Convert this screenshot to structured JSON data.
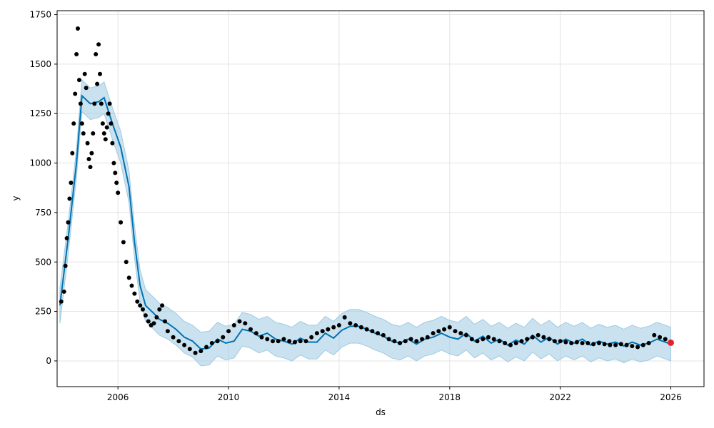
{
  "chart_data": {
    "type": "scatter",
    "xlabel": "ds",
    "ylabel": "y",
    "xlim": [
      2003.8,
      2027.2
    ],
    "ylim": [
      -130,
      1770
    ],
    "grid": true,
    "x_ticks": [
      2006,
      2010,
      2014,
      2018,
      2022,
      2026
    ],
    "x_tick_labels": [
      "2006",
      "2010",
      "2014",
      "2018",
      "2022",
      "2026"
    ],
    "y_ticks": [
      0,
      250,
      500,
      750,
      1000,
      1250,
      1500,
      1750
    ],
    "y_tick_labels": [
      "0",
      "250",
      "500",
      "750",
      "1000",
      "1250",
      "1500",
      "1750"
    ],
    "colors": {
      "observed": "#000000",
      "forecast": "#0072B2",
      "uncertainty": "#9ecae1",
      "highlight": "#e8202a",
      "grid": "#e3e3e3"
    },
    "series": [
      {
        "role": "forecast",
        "x": [
          2003.9,
          2004.2,
          2004.5,
          2004.7,
          2005.0,
          2005.3,
          2005.5,
          2005.8,
          2006.1,
          2006.4,
          2006.6,
          2006.8,
          2007.0,
          2007.3,
          2007.5,
          2007.8,
          2008.1,
          2008.4,
          2008.7,
          2009.0,
          2009.3,
          2009.6,
          2009.9,
          2010.2,
          2010.5,
          2010.8,
          2011.1,
          2011.4,
          2011.7,
          2012.0,
          2012.3,
          2012.6,
          2012.9,
          2013.2,
          2013.5,
          2013.8,
          2014.1,
          2014.4,
          2014.7,
          2015.0,
          2015.3,
          2015.6,
          2015.9,
          2016.2,
          2016.5,
          2016.8,
          2017.1,
          2017.4,
          2017.7,
          2018.0,
          2018.3,
          2018.6,
          2018.9,
          2019.2,
          2019.5,
          2019.8,
          2020.1,
          2020.4,
          2020.7,
          2021.0,
          2021.3,
          2021.6,
          2021.9,
          2022.2,
          2022.5,
          2022.8,
          2023.1,
          2023.4,
          2023.7,
          2024.0,
          2024.3,
          2024.6,
          2024.9,
          2025.2,
          2025.5,
          2025.8,
          2026.0
        ],
        "y": [
          280,
          620,
          1000,
          1340,
          1300,
          1310,
          1330,
          1200,
          1080,
          880,
          600,
          380,
          280,
          240,
          210,
          190,
          160,
          120,
          100,
          60,
          65,
          110,
          90,
          100,
          160,
          150,
          125,
          140,
          110,
          100,
          85,
          115,
          95,
          95,
          140,
          115,
          155,
          175,
          175,
          160,
          140,
          125,
          100,
          90,
          110,
          85,
          110,
          120,
          140,
          120,
          110,
          140,
          100,
          125,
          90,
          110,
          80,
          105,
          85,
          130,
          95,
          120,
          85,
          110,
          90,
          110,
          80,
          100,
          85,
          95,
          75,
          95,
          80,
          90,
          110,
          95,
          85
        ],
        "lower": [
          190,
          540,
          930,
          1260,
          1220,
          1230,
          1250,
          1120,
          1000,
          800,
          520,
          300,
          200,
          160,
          130,
          110,
          80,
          40,
          20,
          -25,
          -20,
          25,
          5,
          15,
          75,
          65,
          40,
          55,
          25,
          15,
          0,
          30,
          10,
          10,
          55,
          30,
          70,
          90,
          90,
          75,
          55,
          40,
          15,
          5,
          25,
          0,
          25,
          35,
          55,
          35,
          25,
          55,
          15,
          40,
          5,
          25,
          -5,
          20,
          0,
          45,
          10,
          35,
          0,
          25,
          5,
          25,
          -5,
          15,
          0,
          10,
          -10,
          10,
          -5,
          5,
          25,
          10,
          0
        ],
        "upper": [
          370,
          700,
          1070,
          1420,
          1380,
          1390,
          1410,
          1280,
          1160,
          960,
          680,
          460,
          360,
          320,
          290,
          270,
          240,
          200,
          180,
          145,
          150,
          195,
          175,
          185,
          245,
          235,
          210,
          225,
          195,
          185,
          170,
          200,
          180,
          180,
          225,
          200,
          240,
          260,
          260,
          245,
          225,
          210,
          185,
          175,
          195,
          170,
          195,
          205,
          225,
          205,
          195,
          225,
          185,
          210,
          175,
          195,
          165,
          190,
          170,
          215,
          180,
          205,
          170,
          195,
          175,
          195,
          165,
          185,
          170,
          180,
          160,
          180,
          165,
          175,
          195,
          180,
          170
        ]
      },
      {
        "role": "observed",
        "x": [
          2003.95,
          2004.05,
          2004.1,
          2004.15,
          2004.2,
          2004.25,
          2004.3,
          2004.35,
          2004.4,
          2004.45,
          2004.5,
          2004.55,
          2004.6,
          2004.65,
          2004.7,
          2004.75,
          2004.8,
          2004.85,
          2004.9,
          2004.95,
          2005.0,
          2005.05,
          2005.1,
          2005.15,
          2005.2,
          2005.25,
          2005.3,
          2005.35,
          2005.4,
          2005.45,
          2005.5,
          2005.55,
          2005.6,
          2005.65,
          2005.7,
          2005.75,
          2005.8,
          2005.85,
          2005.9,
          2005.95,
          2006.0,
          2006.1,
          2006.2,
          2006.3,
          2006.4,
          2006.5,
          2006.6,
          2006.7,
          2006.8,
          2006.9,
          2007.0,
          2007.1,
          2007.2,
          2007.3,
          2007.4,
          2007.5,
          2007.6,
          2007.7,
          2007.8,
          2008.0,
          2008.2,
          2008.4,
          2008.6,
          2008.8,
          2009.0,
          2009.2,
          2009.4,
          2009.6,
          2009.8,
          2010.0,
          2010.2,
          2010.4,
          2010.6,
          2010.8,
          2011.0,
          2011.2,
          2011.4,
          2011.6,
          2011.8,
          2012.0,
          2012.2,
          2012.4,
          2012.6,
          2012.8,
          2013.0,
          2013.2,
          2013.4,
          2013.6,
          2013.8,
          2014.0,
          2014.2,
          2014.4,
          2014.6,
          2014.8,
          2015.0,
          2015.2,
          2015.4,
          2015.6,
          2015.8,
          2016.0,
          2016.2,
          2016.4,
          2016.6,
          2016.8,
          2017.0,
          2017.2,
          2017.4,
          2017.6,
          2017.8,
          2018.0,
          2018.2,
          2018.4,
          2018.6,
          2018.8,
          2019.0,
          2019.2,
          2019.4,
          2019.6,
          2019.8,
          2020.0,
          2020.2,
          2020.4,
          2020.6,
          2020.8,
          2021.0,
          2021.2,
          2021.4,
          2021.6,
          2021.8,
          2022.0,
          2022.2,
          2022.4,
          2022.6,
          2022.8,
          2023.0,
          2023.2,
          2023.4,
          2023.6,
          2023.8,
          2024.0,
          2024.2,
          2024.4,
          2024.6,
          2024.8,
          2025.0,
          2025.2,
          2025.4,
          2025.6,
          2025.8
        ],
        "y": [
          300,
          350,
          480,
          620,
          700,
          820,
          900,
          1050,
          1200,
          1350,
          1550,
          1680,
          1420,
          1300,
          1200,
          1150,
          1450,
          1380,
          1100,
          1020,
          980,
          1050,
          1150,
          1300,
          1550,
          1400,
          1600,
          1450,
          1300,
          1200,
          1150,
          1120,
          1180,
          1250,
          1300,
          1200,
          1100,
          1000,
          950,
          900,
          850,
          700,
          600,
          500,
          420,
          380,
          340,
          300,
          280,
          260,
          230,
          200,
          180,
          190,
          220,
          260,
          280,
          200,
          150,
          120,
          100,
          80,
          60,
          40,
          50,
          70,
          90,
          100,
          120,
          150,
          180,
          200,
          190,
          160,
          140,
          120,
          110,
          100,
          100,
          110,
          100,
          95,
          100,
          100,
          120,
          140,
          150,
          160,
          170,
          180,
          220,
          190,
          180,
          170,
          160,
          150,
          140,
          130,
          110,
          100,
          90,
          100,
          110,
          100,
          110,
          120,
          140,
          150,
          160,
          170,
          150,
          140,
          130,
          110,
          100,
          110,
          120,
          110,
          100,
          90,
          80,
          90,
          100,
          110,
          120,
          130,
          120,
          110,
          100,
          100,
          95,
          90,
          95,
          90,
          90,
          85,
          90,
          85,
          80,
          80,
          85,
          80,
          75,
          70,
          80,
          90,
          130,
          120,
          110
        ]
      },
      {
        "role": "highlight",
        "x": [
          2026.0
        ],
        "y": [
          92
        ]
      }
    ]
  }
}
